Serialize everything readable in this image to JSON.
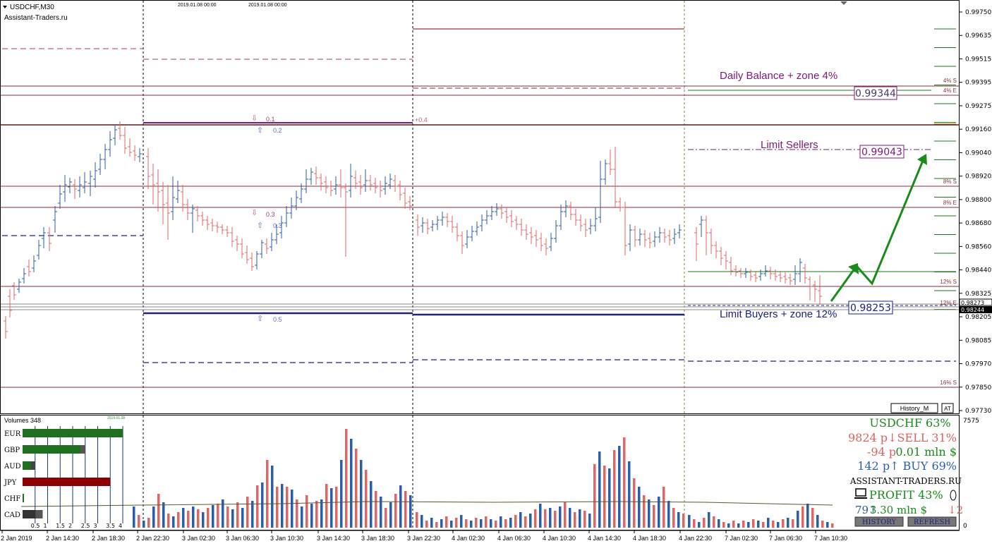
{
  "chart": {
    "symbol_title": "USDCHF,M30",
    "brand": "Assistant-Traders.ru",
    "top_dates": [
      "2019.01.08 00:00",
      "2019.01.08 00:00"
    ],
    "price_axis": [
      "0.99750",
      "0.99635",
      "0.99515",
      "0.99395",
      "0.99275",
      "0.99160",
      "0.99040",
      "0.98920",
      "0.98800",
      "0.98680",
      "0.98560",
      "0.98440",
      "0.98325",
      "0.98205",
      "0.98085",
      "0.97970",
      "0.97850",
      "0.97730"
    ],
    "current_prices": [
      "0.98273",
      "0.98244"
    ],
    "time_axis": [
      "2 Jan 2019",
      "2 Jan 14:30",
      "2 Jan 18:30",
      "2 Jan 22:30",
      "3 Jan 02:30",
      "3 Jan 06:30",
      "3 Jan 10:30",
      "3 Jan 14:30",
      "3 Jan 18:30",
      "3 Jan 22:30",
      "4 Jan 02:30",
      "4 Jan 06:30",
      "4 Jan 10:30",
      "4 Jan 14:30",
      "4 Jan 18:30",
      "4 Jan 22:30",
      "7 Jan 02:30",
      "7 Jan 06:30",
      "7 Jan 10:30"
    ],
    "fibo": [
      "0.1",
      "0.2",
      "0.3",
      "0.3",
      "0.5",
      "0.4"
    ],
    "zone_labels": [
      "4% S",
      "4% E",
      "8% S",
      "8% E",
      "12% S",
      "12% E",
      "16% S"
    ],
    "annotations": {
      "daily_balance": "Daily Balance + zone 4%",
      "limit_sellers": "Limit Sellers",
      "limit_buyers": "Limit Buyers + zone 12%"
    },
    "price_boxes": {
      "balance": "0.99344",
      "sellers": "0.99043",
      "buyers": "0.98253"
    },
    "buttons": {
      "history_m": "History_M",
      "at": "AT"
    }
  },
  "volumes": {
    "title": "Volumes 348",
    "scale_top": "7575",
    "scale_bottom": "0",
    "mini_date": "2019.01.08",
    "currencies": [
      {
        "name": "EUR",
        "strength": 4.0,
        "color": "#1f6f1f"
      },
      {
        "name": "GBP",
        "strength": 2.5,
        "color": "#1f6f1f"
      },
      {
        "name": "AUD",
        "strength": 0.5,
        "color": "#1f6f1f"
      },
      {
        "name": "JPY",
        "strength": 3.5,
        "color": "#8b0000"
      },
      {
        "name": "CHF",
        "strength": 0.05,
        "color": "#1f6f1f"
      },
      {
        "name": "CAD",
        "strength": 0.8,
        "color": "#333333"
      }
    ],
    "strength_axis": [
      "0.5",
      "1",
      "1.5",
      "2",
      "2.5",
      "3",
      "3.5",
      "4"
    ]
  },
  "panel": {
    "title": "USDCHF 63%",
    "sell_line": "9824 p↓SELL 31%",
    "pnl_left": "-94 p",
    "pnl_right": "0.01 mln $",
    "buy_line": "142 p↑ BUY 69%",
    "brand": "ASSISTANT-TRADERS.RU",
    "profit": "PROFIT 43%",
    "bottom_left": "79↑",
    "bottom_mid": "3.30 mln $",
    "bottom_right": "↓2",
    "history_btn": "HISTORY",
    "refresh_btn": "REFRESH"
  },
  "colors": {
    "bull": "#2b5ea8",
    "bear": "#e06666",
    "zone": "#8b2e3a",
    "navy": "#1a237e",
    "purple": "#7a1a7a",
    "green": "#1a7a1a",
    "arrow": "#1a8a1a"
  }
}
